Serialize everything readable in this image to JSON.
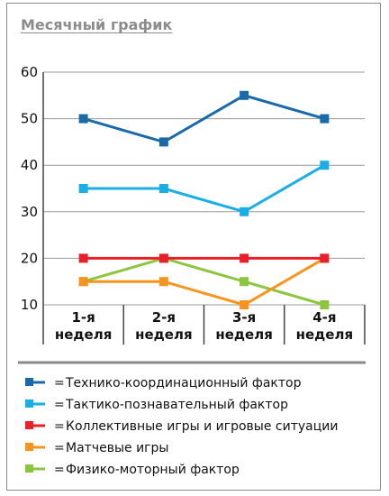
{
  "chart_data": {
    "type": "line",
    "title": "Месячный график",
    "categories": [
      [
        "1-я",
        "неделя"
      ],
      [
        "2-я",
        "неделя"
      ],
      [
        "3-я",
        "неделя"
      ],
      [
        "4-я",
        "неделя"
      ]
    ],
    "ylim": [
      10,
      60
    ],
    "yticks": [
      "10",
      "20",
      "30",
      "40",
      "50",
      "60"
    ],
    "grid": true,
    "legend_position": "bottom",
    "series": [
      {
        "name": "Технико-координационный фактор",
        "color": "#1a6aaa",
        "values": [
          50,
          45,
          55,
          50
        ]
      },
      {
        "name": "Тактико-познавательный фактор",
        "color": "#1aaee6",
        "values": [
          35,
          35,
          30,
          40
        ]
      },
      {
        "name": "Коллективные игры и игровые ситуации",
        "color": "#e8202a",
        "values": [
          20,
          20,
          20,
          20
        ]
      },
      {
        "name": "Матчевые игры",
        "color": "#f7941d",
        "values": [
          15,
          15,
          10,
          20
        ]
      },
      {
        "name": "Физико-моторный фактор",
        "color": "#8cc63f",
        "values": [
          15,
          20,
          15,
          10
        ]
      }
    ],
    "legend_separator": "="
  }
}
